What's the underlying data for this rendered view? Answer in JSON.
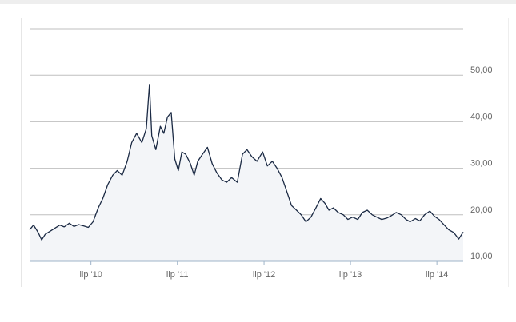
{
  "chart_data": {
    "type": "area",
    "title": "",
    "xlabel": "",
    "ylabel": "",
    "ylim": [
      10,
      60
    ],
    "yticks": [
      10,
      20,
      30,
      40,
      50
    ],
    "ytick_labels": [
      "10,00",
      "20,00",
      "30,00",
      "40,00",
      "50,00"
    ],
    "xlim": [
      "2009-10-15",
      "2014-10-20"
    ],
    "xticks": [
      {
        "date": "2010-07-01",
        "label": "lip '10"
      },
      {
        "date": "2011-07-01",
        "label": "lip '11"
      },
      {
        "date": "2012-07-01",
        "label": "lip '12"
      },
      {
        "date": "2013-07-01",
        "label": "lip '13"
      },
      {
        "date": "2014-07-01",
        "label": "lip '14"
      }
    ],
    "grid": true,
    "colors": {
      "line": "#1b2a44",
      "fill": "#f3f5f8",
      "grid": "#bfbfbf",
      "baseline": "#9fb4c9"
    },
    "series": [
      {
        "x": [
          "2009-10-15",
          "2009-11-01",
          "2009-11-20",
          "2009-12-05",
          "2009-12-20",
          "2010-01-10",
          "2010-02-01",
          "2010-02-20",
          "2010-03-10",
          "2010-04-01",
          "2010-04-20",
          "2010-05-10",
          "2010-06-01",
          "2010-06-20",
          "2010-07-10",
          "2010-08-01",
          "2010-08-20",
          "2010-09-10",
          "2010-10-01",
          "2010-10-20",
          "2010-11-10",
          "2010-12-01",
          "2010-12-20",
          "2011-01-10",
          "2011-02-01",
          "2011-02-20",
          "2011-03-05",
          "2011-03-15",
          "2011-04-01",
          "2011-04-20",
          "2011-05-05",
          "2011-05-20",
          "2011-06-05",
          "2011-06-20",
          "2011-07-05",
          "2011-07-20",
          "2011-08-05",
          "2011-08-25",
          "2011-09-10",
          "2011-09-25",
          "2011-10-15",
          "2011-11-05",
          "2011-11-25",
          "2011-12-15",
          "2012-01-05",
          "2012-01-25",
          "2012-02-15",
          "2012-03-10",
          "2012-04-01",
          "2012-04-20",
          "2012-05-10",
          "2012-06-01",
          "2012-06-25",
          "2012-07-15",
          "2012-08-05",
          "2012-08-25",
          "2012-09-15",
          "2012-10-05",
          "2012-10-25",
          "2012-11-15",
          "2012-12-05",
          "2012-12-25",
          "2013-01-15",
          "2013-02-05",
          "2013-02-25",
          "2013-03-15",
          "2013-04-01",
          "2013-04-20",
          "2013-05-10",
          "2013-06-01",
          "2013-06-20",
          "2013-07-10",
          "2013-08-01",
          "2013-08-20",
          "2013-09-10",
          "2013-10-01",
          "2013-10-20",
          "2013-11-10",
          "2013-12-01",
          "2013-12-20",
          "2014-01-10",
          "2014-02-01",
          "2014-02-20",
          "2014-03-10",
          "2014-04-01",
          "2014-04-20",
          "2014-05-10",
          "2014-06-01",
          "2014-06-20",
          "2014-07-10",
          "2014-08-01",
          "2014-08-20",
          "2014-09-10",
          "2014-10-01",
          "2014-10-20"
        ],
        "y": [
          16.8,
          17.8,
          16.2,
          14.6,
          15.8,
          16.5,
          17.2,
          17.8,
          17.4,
          18.2,
          17.5,
          17.9,
          17.6,
          17.3,
          18.5,
          21.5,
          23.5,
          26.5,
          28.5,
          29.5,
          28.5,
          31.5,
          35.5,
          37.5,
          35.5,
          38.5,
          48.0,
          37.0,
          34.0,
          39.0,
          37.5,
          41.0,
          42.0,
          32.0,
          29.5,
          33.5,
          33.0,
          31.0,
          28.5,
          31.5,
          33.0,
          34.5,
          31.0,
          29.0,
          27.5,
          27.0,
          28.0,
          27.0,
          33.0,
          34.0,
          32.5,
          31.5,
          33.5,
          30.5,
          31.5,
          30.0,
          28.0,
          25.0,
          22.0,
          21.0,
          20.0,
          18.5,
          19.5,
          21.5,
          23.5,
          22.5,
          21.0,
          21.5,
          20.5,
          20.0,
          19.0,
          19.5,
          19.0,
          20.5,
          21.0,
          20.0,
          19.5,
          19.0,
          19.3,
          19.8,
          20.5,
          20.0,
          19.0,
          18.5,
          19.2,
          18.7,
          20.0,
          20.8,
          19.7,
          19.0,
          17.8,
          16.8,
          16.2,
          14.8,
          16.3
        ]
      }
    ]
  }
}
